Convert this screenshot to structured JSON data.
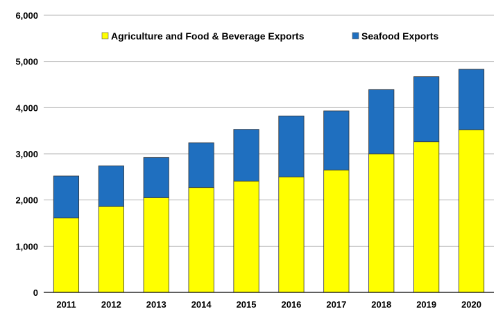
{
  "chart_data": {
    "type": "bar",
    "stacked": true,
    "title": "",
    "xlabel": "",
    "ylabel": "",
    "categories": [
      "2011",
      "2012",
      "2013",
      "2014",
      "2015",
      "2016",
      "2017",
      "2018",
      "2019",
      "2020"
    ],
    "series": [
      {
        "name": "Agriculture and Food & Beverage Exports",
        "color": "#FFFF00",
        "values": [
          1610,
          1860,
          2050,
          2270,
          2410,
          2500,
          2650,
          3000,
          3260,
          3520
        ]
      },
      {
        "name": "Seafood Exports",
        "color": "#1F6FBF",
        "values": [
          910,
          880,
          870,
          970,
          1120,
          1320,
          1280,
          1390,
          1410,
          1310
        ]
      }
    ],
    "ylim": [
      0,
      6000
    ],
    "yticks": [
      0,
      1000,
      2000,
      3000,
      4000,
      5000,
      6000
    ],
    "ytick_labels": [
      "0",
      "1,000",
      "2,000",
      "3,000",
      "4,000",
      "5,000",
      "6,000"
    ],
    "grid": true,
    "legend_position": "top"
  }
}
